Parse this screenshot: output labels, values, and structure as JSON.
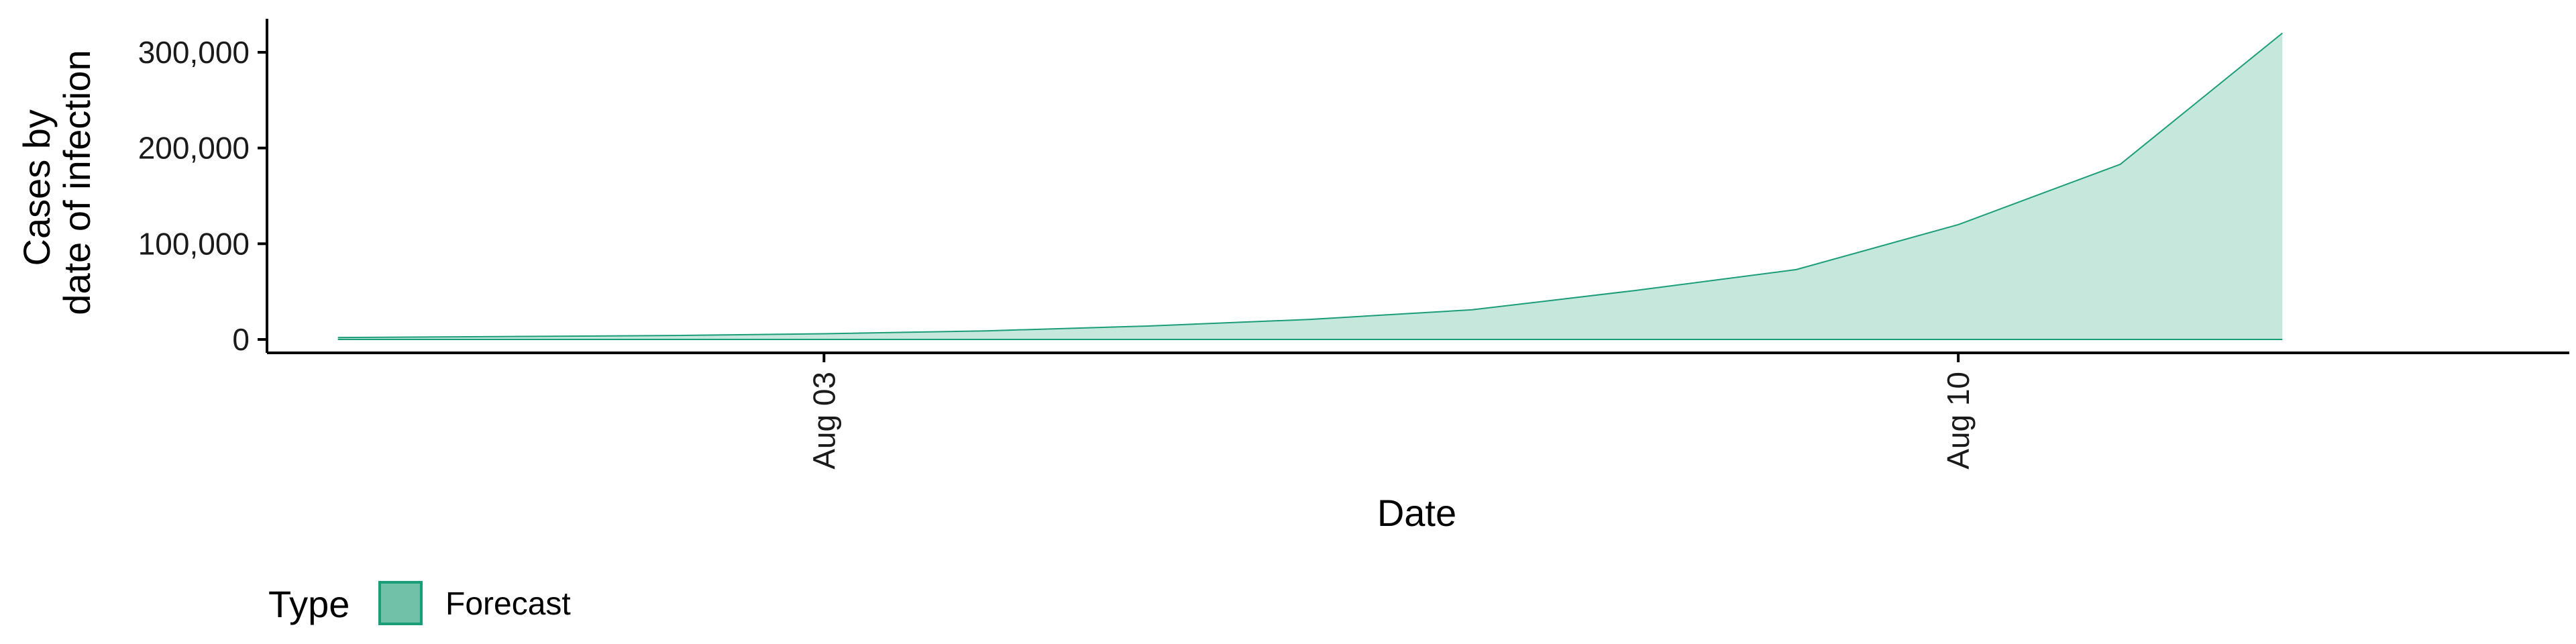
{
  "chart_data": {
    "type": "area",
    "xlabel": "Date",
    "ylabel_lines": [
      "Cases by",
      "date of infection"
    ],
    "x": [
      "2020-07-31",
      "2020-08-01",
      "2020-08-02",
      "2020-08-03",
      "2020-08-04",
      "2020-08-05",
      "2020-08-06",
      "2020-08-07",
      "2020-08-08",
      "2020-08-09",
      "2020-08-10",
      "2020-08-11",
      "2020-08-12"
    ],
    "x_tick_labels": [
      {
        "date": "2020-08-03",
        "label": "Aug 03"
      },
      {
        "date": "2020-08-10",
        "label": "Aug 10"
      }
    ],
    "xlim": [
      "2020-07-30T13:30",
      "2020-08-13T18:30"
    ],
    "series": [
      {
        "name": "Forecast",
        "lower": [
          0,
          0,
          0,
          0,
          0,
          0,
          0,
          0,
          0,
          0,
          0,
          0,
          0
        ],
        "upper": [
          2000,
          3000,
          4000,
          6000,
          9000,
          14000,
          21000,
          31000,
          51000,
          73000,
          120000,
          183000,
          320000
        ]
      }
    ],
    "y_ticks": [
      0,
      100000,
      200000,
      300000
    ],
    "y_tick_labels": [
      "0",
      "100,000",
      "200,000",
      "300,000"
    ],
    "ylim": [
      -14000,
      335000
    ],
    "grid": false,
    "legend": {
      "position": "bottom-left",
      "title": "Type",
      "items": [
        {
          "label": "Forecast"
        }
      ]
    },
    "colors": {
      "fill": "#c5e7dc",
      "line": "#1b9e77",
      "legend_fill": "#70c1a8",
      "axis": "#000000"
    }
  }
}
